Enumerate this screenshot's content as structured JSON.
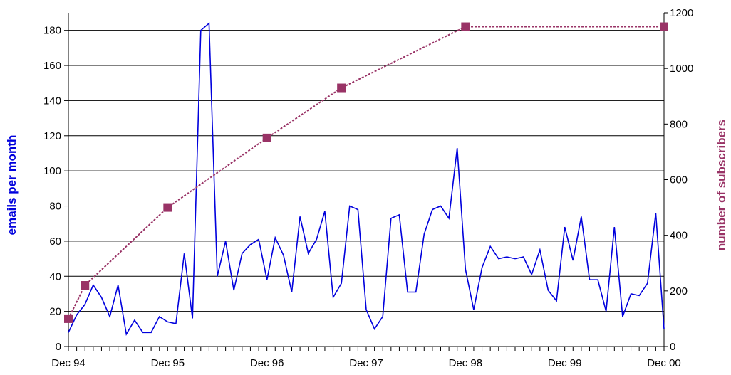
{
  "chart_data": {
    "type": "line",
    "x_tick_labels": [
      "Dec 94",
      "Dec 95",
      "Dec 96",
      "Dec 97",
      "Dec 98",
      "Dec 99",
      "Dec 00"
    ],
    "grid": "horizontal gridlines at left-axis major ticks",
    "y_left": {
      "label": "emails per month",
      "ticks": [
        "0",
        "20",
        "40",
        "60",
        "80",
        "100",
        "120",
        "140",
        "160",
        "180"
      ],
      "range": [
        0,
        190
      ],
      "color": "#0000dd"
    },
    "y_right": {
      "label": "number of subscribers",
      "ticks": [
        "0",
        "200",
        "400",
        "600",
        "800",
        "1000",
        "1200"
      ],
      "range": [
        0,
        1200
      ],
      "color": "#993366"
    },
    "series": [
      {
        "axis": "left",
        "style": "solid line",
        "color": "#0000dd",
        "x": [
          "1994-12",
          "1995-01",
          "1995-02",
          "1995-03",
          "1995-04",
          "1995-05",
          "1995-06",
          "1995-07",
          "1995-08",
          "1995-09",
          "1995-10",
          "1995-11",
          "1995-12",
          "1996-01",
          "1996-02",
          "1996-03",
          "1996-04",
          "1996-05",
          "1996-06",
          "1996-07",
          "1996-08",
          "1996-09",
          "1996-10",
          "1996-11",
          "1996-12",
          "1997-01",
          "1997-02",
          "1997-03",
          "1997-04",
          "1997-05",
          "1997-06",
          "1997-07",
          "1997-08",
          "1997-09",
          "1997-10",
          "1997-11",
          "1997-12",
          "1998-01",
          "1998-02",
          "1998-03",
          "1998-04",
          "1998-05",
          "1998-06",
          "1998-07",
          "1998-08",
          "1998-09",
          "1998-10",
          "1998-11",
          "1998-12",
          "1999-01",
          "1999-02",
          "1999-03",
          "1999-04",
          "1999-05",
          "1999-06",
          "1999-07",
          "1999-08",
          "1999-09",
          "1999-10",
          "1999-11",
          "1999-12",
          "2000-01",
          "2000-02",
          "2000-03",
          "2000-04",
          "2000-05",
          "2000-06",
          "2000-07",
          "2000-08",
          "2000-09",
          "2000-10",
          "2000-11",
          "2000-12"
        ],
        "values": [
          8,
          18,
          24,
          35,
          28,
          17,
          35,
          7,
          15,
          8,
          8,
          17,
          14,
          13,
          53,
          16,
          180,
          184,
          40,
          60,
          32,
          53,
          58,
          61,
          38,
          62,
          52,
          31,
          74,
          53,
          61,
          77,
          28,
          36,
          80,
          78,
          21,
          10,
          17,
          73,
          75,
          31,
          31,
          64,
          78,
          80,
          73,
          113,
          44,
          21,
          45,
          57,
          50,
          51,
          50,
          51,
          41,
          55,
          32,
          26,
          68,
          49,
          74,
          38,
          38,
          20,
          68,
          17,
          30,
          29,
          36,
          76,
          10
        ]
      },
      {
        "axis": "right",
        "style": "dotted line with square markers",
        "color": "#993366",
        "x": [
          "1994-12",
          "1995-02",
          "1995-12",
          "1996-12",
          "1997-09",
          "1998-12",
          "2000-12"
        ],
        "values": [
          100,
          220,
          500,
          750,
          930,
          1150,
          1150
        ]
      }
    ]
  }
}
